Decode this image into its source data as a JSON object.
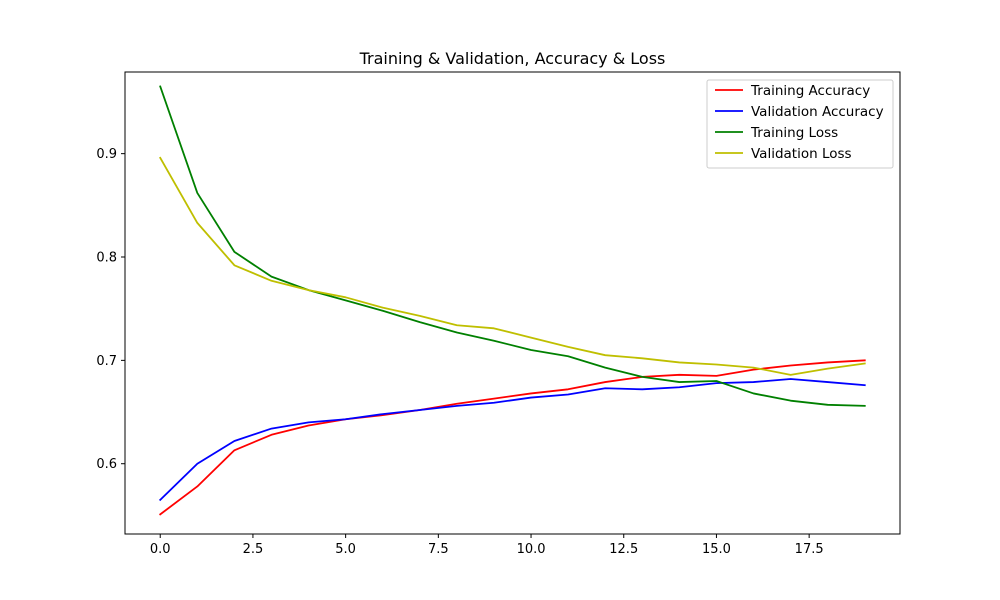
{
  "chart_data": {
    "type": "line",
    "title": "Training & Validation, Accuracy & Loss",
    "xlabel": "",
    "ylabel": "",
    "xlim": [
      -0.95,
      19.95
    ],
    "ylim": [
      0.532,
      0.979
    ],
    "x_ticks": [
      0.0,
      2.5,
      5.0,
      7.5,
      10.0,
      12.5,
      15.0,
      17.5
    ],
    "x_tick_labels": [
      "0.0",
      "2.5",
      "5.0",
      "7.5",
      "10.0",
      "12.5",
      "15.0",
      "17.5"
    ],
    "y_ticks": [
      0.6,
      0.7,
      0.8,
      0.9
    ],
    "y_tick_labels": [
      "0.6",
      "0.7",
      "0.8",
      "0.9"
    ],
    "grid": false,
    "legend_position": "top-right",
    "x": [
      0,
      1,
      2,
      3,
      4,
      5,
      6,
      7,
      8,
      9,
      10,
      11,
      12,
      13,
      14,
      15,
      16,
      17,
      18,
      19
    ],
    "series": [
      {
        "name": "Training Accuracy",
        "color": "#ff0000",
        "values": [
          0.551,
          0.578,
          0.613,
          0.628,
          0.637,
          0.643,
          0.647,
          0.652,
          0.658,
          0.663,
          0.668,
          0.672,
          0.679,
          0.684,
          0.686,
          0.685,
          0.691,
          0.695,
          0.698,
          0.7
        ]
      },
      {
        "name": "Validation Accuracy",
        "color": "#0000ff",
        "values": [
          0.565,
          0.6,
          0.622,
          0.634,
          0.64,
          0.643,
          0.648,
          0.652,
          0.656,
          0.659,
          0.664,
          0.667,
          0.673,
          0.672,
          0.674,
          0.678,
          0.679,
          0.682,
          0.679,
          0.676
        ]
      },
      {
        "name": "Training Loss",
        "color": "#008000",
        "values": [
          0.965,
          0.862,
          0.805,
          0.781,
          0.768,
          0.758,
          0.748,
          0.737,
          0.727,
          0.719,
          0.71,
          0.704,
          0.693,
          0.684,
          0.679,
          0.68,
          0.668,
          0.661,
          0.657,
          0.656
        ]
      },
      {
        "name": "Validation Loss",
        "color": "#bfbf00",
        "values": [
          0.896,
          0.833,
          0.792,
          0.777,
          0.768,
          0.761,
          0.751,
          0.743,
          0.734,
          0.731,
          0.722,
          0.713,
          0.705,
          0.702,
          0.698,
          0.696,
          0.693,
          0.686,
          0.692,
          0.697
        ]
      }
    ]
  }
}
